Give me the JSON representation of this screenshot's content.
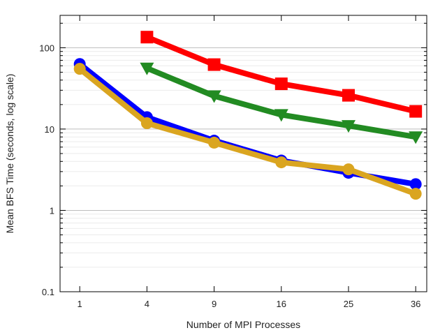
{
  "chart_data": {
    "type": "line",
    "title": "",
    "xlabel": "Number of MPI Processes",
    "ylabel": "Mean BFS Time (seconds, log scale)",
    "x_scale": "sqrt",
    "y_scale": "log",
    "xlim": [
      0.5,
      38
    ],
    "ylim": [
      0.1,
      250
    ],
    "x_ticks": [
      1,
      4,
      9,
      16,
      25,
      36
    ],
    "x_tick_labels": [
      "1",
      "4",
      "9",
      "16",
      "25",
      "36"
    ],
    "y_ticks": [
      0.1,
      1,
      10,
      100
    ],
    "y_tick_labels": [
      "0.1",
      "1",
      "10",
      "100"
    ],
    "grid": true,
    "legend": "none",
    "series": [
      {
        "color": "#0000ff",
        "marker": "circle",
        "x": [
          1,
          4,
          9,
          16,
          25,
          36
        ],
        "y": [
          63,
          14,
          7.2,
          4.1,
          2.9,
          2.1
        ]
      },
      {
        "color": "#ff0000",
        "marker": "square",
        "x": [
          4,
          9,
          16,
          25,
          36
        ],
        "y": [
          135,
          62,
          36,
          26,
          16.5
        ]
      },
      {
        "color": "#228b22",
        "marker": "triangle-down",
        "x": [
          4,
          9,
          16,
          25,
          36
        ],
        "y": [
          56,
          25.5,
          15,
          11,
          8
        ]
      },
      {
        "color": "#daa520",
        "marker": "circle",
        "x": [
          1,
          4,
          9,
          16,
          25,
          36
        ],
        "y": [
          55,
          11.8,
          6.8,
          3.9,
          3.2,
          1.6
        ]
      }
    ]
  }
}
